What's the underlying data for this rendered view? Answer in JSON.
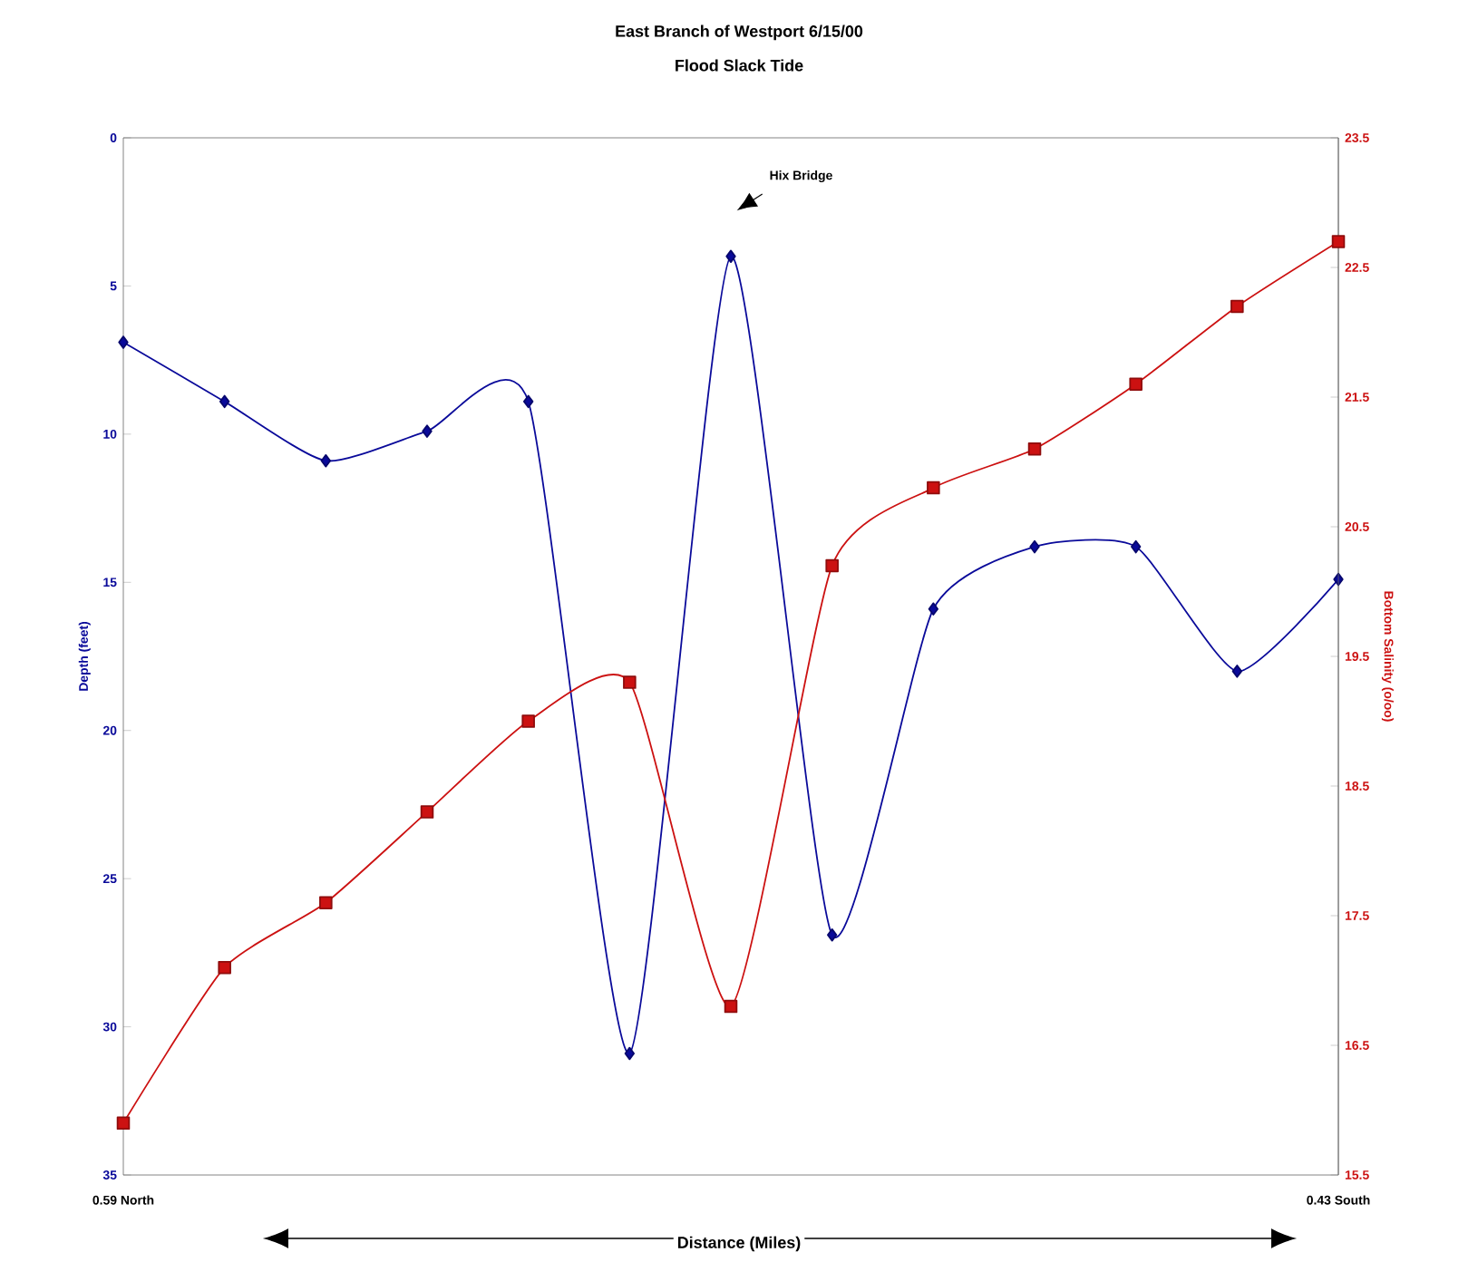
{
  "chart_data": {
    "type": "line",
    "title": "East Branch of Westport 6/15/00",
    "subtitle": "Flood Slack Tide",
    "xlabel": "Distance (Miles)",
    "ylabel": "Depth (feet)",
    "y2label": "Bottom Salinity (o/oo)",
    "annotations": [
      "Hix Bridge",
      "0.59 North",
      "0.43 South"
    ],
    "categories": [
      null,
      null,
      null,
      null,
      null,
      null,
      null,
      null,
      null,
      null,
      null,
      null,
      null
    ],
    "ylim": [
      35,
      0
    ],
    "yticks": [
      0,
      5,
      10,
      15,
      20,
      25,
      30,
      35
    ],
    "y2lim": [
      15.5,
      23.5
    ],
    "y2ticks": [
      15.5,
      16.5,
      17.5,
      18.5,
      19.5,
      20.5,
      21.5,
      22.5,
      23.5
    ],
    "series": [
      {
        "color": "#0a0a9a",
        "marker": "diamond",
        "axis": "y",
        "values": [
          6.9,
          8.9,
          10.9,
          9.9,
          8.9,
          30.9,
          4.0,
          26.9,
          15.9,
          13.8,
          13.8,
          18.0,
          14.9
        ]
      },
      {
        "color": "#cc1111",
        "marker": "square",
        "axis": "y2",
        "values": [
          15.9,
          17.1,
          17.6,
          18.3,
          19.0,
          19.3,
          16.8,
          20.2,
          20.8,
          21.1,
          21.6,
          22.2,
          22.7
        ]
      }
    ]
  }
}
